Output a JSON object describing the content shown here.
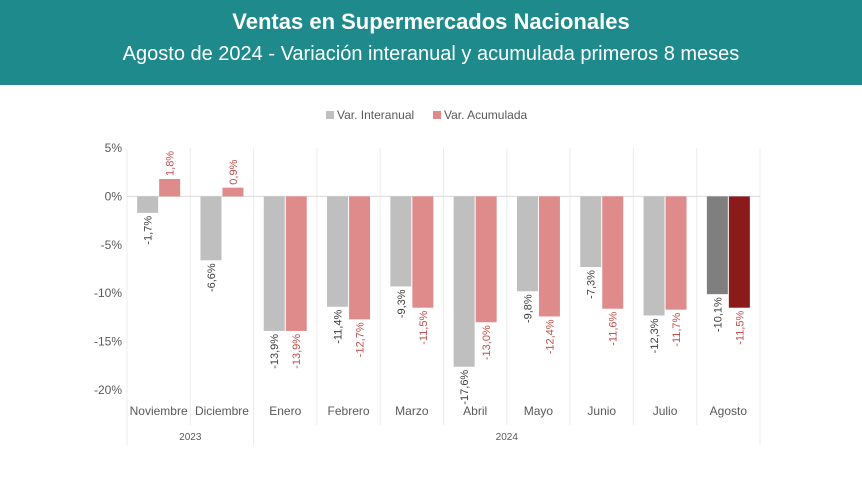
{
  "header": {
    "title": "Ventas en Supermercados Nacionales",
    "subtitle": "Agosto de 2024 - Variación interanual y acumulada primeros 8 meses"
  },
  "colors": {
    "header_bg": "#1f8a8c",
    "interanual": "#bfbfbf",
    "acumulada": "#e08b8b",
    "interanual_highlight": "#7f7f7f",
    "acumulada_highlight": "#8b1a1a",
    "negative_label_acumulada": "#c0504d",
    "label_dark": "#404040"
  },
  "chart_data": {
    "type": "bar",
    "categories": [
      "Noviembre",
      "Diciembre",
      "Enero",
      "Febrero",
      "Marzo",
      "Abril",
      "Mayo",
      "Junio",
      "Julio",
      "Agosto"
    ],
    "groups": [
      {
        "label": "2023",
        "count": 2
      },
      {
        "label": "2024",
        "count": 8
      }
    ],
    "series": [
      {
        "name": "Var. Interanual",
        "values": [
          -1.7,
          -6.6,
          -13.9,
          -11.4,
          -9.3,
          -17.6,
          -9.8,
          -7.3,
          -12.3,
          -10.1
        ],
        "labels": [
          "-1,7%",
          "-6,6%",
          "-13,9%",
          "-11,4%",
          "-9,3%",
          "-17,6%",
          "-9,8%",
          "-7,3%",
          "-12,3%",
          "-10,1%"
        ]
      },
      {
        "name": "Var. Acumulada",
        "values": [
          1.8,
          0.9,
          -13.9,
          -12.7,
          -11.5,
          -13.0,
          -12.4,
          -11.6,
          -11.7,
          -11.5
        ],
        "labels": [
          "1,8%",
          "0,9%",
          "-13,9%",
          "-12,7%",
          "-11,5%",
          "-13,0%",
          "-12,4%",
          "-11,6%",
          "-11,7%",
          "-11,5%"
        ]
      }
    ],
    "highlight_index": 9,
    "ylim": [
      -20,
      5
    ],
    "yticks": [
      5,
      0,
      -5,
      -10,
      -15,
      -20
    ],
    "ytick_labels": [
      "5%",
      "0%",
      "-5%",
      "-10%",
      "-15%",
      "-20%"
    ],
    "legend_position": "top-center",
    "grid": false
  }
}
